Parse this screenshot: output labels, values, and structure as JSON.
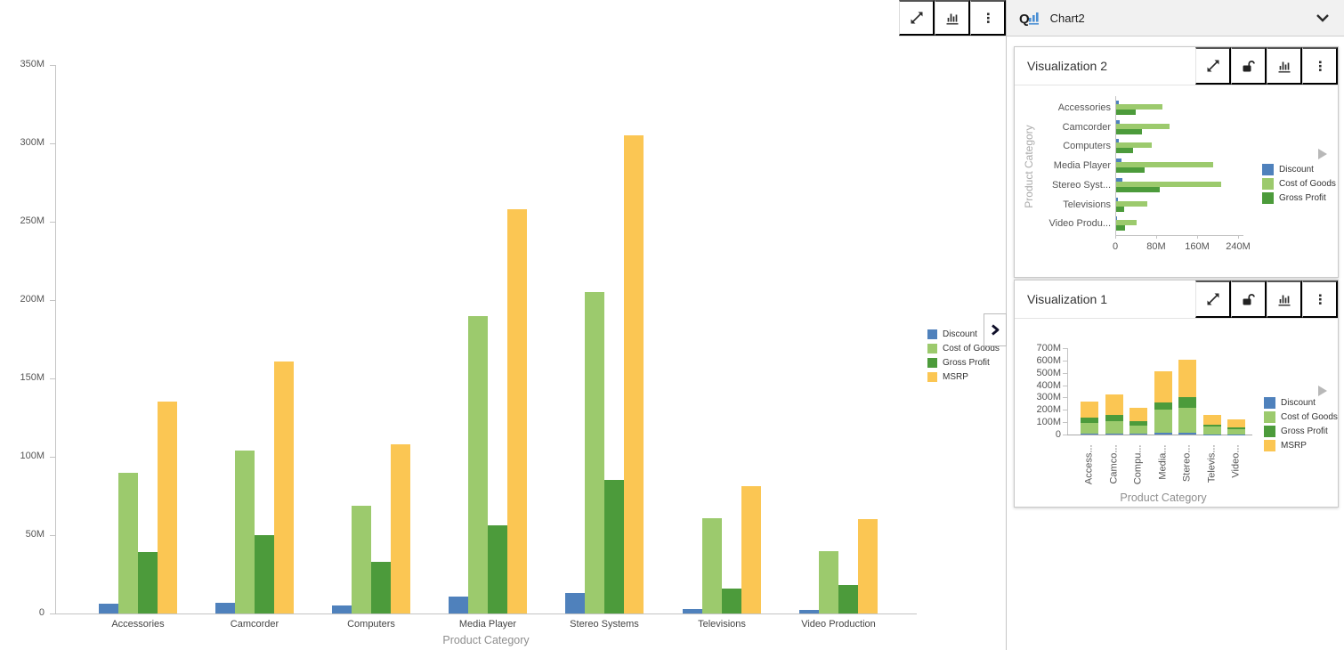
{
  "panel": {
    "title": "Chart2",
    "logo_text": "Q",
    "cards": [
      {
        "title": "Visualization 2"
      },
      {
        "title": "Visualization 1"
      }
    ]
  },
  "icons": {
    "main_toolbar": [
      "expand-icon",
      "bar-chart-icon",
      "ellipsis-icon"
    ],
    "card_toolbar": [
      "expand-icon",
      "unlock-icon",
      "bar-chart-icon",
      "ellipsis-icon"
    ],
    "panel_header": [
      "q-bars-logo-icon",
      "chevron-down-icon"
    ],
    "main_collapse": "chevron-right-icon",
    "card_overflow": "triangle-right-icon"
  },
  "colors": {
    "discount": "#4F81BC",
    "cost_of_goods": "#9CCA6D",
    "gross_profit": "#4C9B3B",
    "msrp": "#FBC653",
    "axis_line": "#c4c4c4",
    "tick_text": "#555555",
    "category_text": "#444444",
    "axis_title_text": "#8f8f8f",
    "rotated_axis_title_text": "#aaaaaa"
  },
  "chart_data": [
    {
      "id": "main",
      "type": "bar",
      "title": "",
      "xlabel": "Product Category",
      "ylabel": "",
      "unit": "M",
      "ylim": [
        0,
        350
      ],
      "grid": false,
      "legend_position": "right",
      "categories": [
        "Accessories",
        "Camcorder",
        "Computers",
        "Media Player",
        "Stereo Systems",
        "Televisions",
        "Video Production"
      ],
      "yticks": [
        {
          "v": 0,
          "label": "0"
        },
        {
          "v": 50,
          "label": "50M"
        },
        {
          "v": 100,
          "label": "100M"
        },
        {
          "v": 150,
          "label": "150M"
        },
        {
          "v": 200,
          "label": "200M"
        },
        {
          "v": 250,
          "label": "250M"
        },
        {
          "v": 300,
          "label": "300M"
        },
        {
          "v": 350,
          "label": "350M"
        }
      ],
      "series": [
        {
          "name": "Discount",
          "color_key": "discount",
          "values": [
            6,
            7,
            5,
            11,
            13,
            3,
            2
          ]
        },
        {
          "name": "Cost of Goods",
          "color_key": "cost_of_goods",
          "values": [
            90,
            104,
            69,
            190,
            205,
            61,
            40
          ]
        },
        {
          "name": "Gross Profit",
          "color_key": "gross_profit",
          "values": [
            39,
            50,
            33,
            56,
            85,
            16,
            18
          ]
        },
        {
          "name": "MSRP",
          "color_key": "msrp",
          "values": [
            135,
            161,
            108,
            258,
            305,
            81,
            60
          ]
        }
      ]
    },
    {
      "id": "viz2",
      "type": "bar-horizontal",
      "title": "Visualization 2",
      "xlabel": "",
      "ylabel": "Product Category",
      "unit": "M",
      "xlim": [
        0,
        240
      ],
      "grid": false,
      "legend_position": "right",
      "categories": [
        "Accessories",
        "Camcorder",
        "Computers",
        "Media Player",
        "Stereo Syst...",
        "Televisions",
        "Video Produ..."
      ],
      "xticks": [
        {
          "v": 0,
          "label": "0"
        },
        {
          "v": 80,
          "label": "80M"
        },
        {
          "v": 160,
          "label": "160M"
        },
        {
          "v": 240,
          "label": "240M"
        }
      ],
      "series": [
        {
          "name": "Discount",
          "color_key": "discount",
          "values": [
            6,
            7,
            5,
            11,
            13,
            3,
            2
          ]
        },
        {
          "name": "Cost of Goods",
          "color_key": "cost_of_goods",
          "values": [
            90,
            104,
            69,
            190,
            205,
            61,
            40
          ]
        },
        {
          "name": "Gross Profit",
          "color_key": "gross_profit",
          "values": [
            39,
            50,
            33,
            56,
            85,
            16,
            18
          ]
        }
      ]
    },
    {
      "id": "viz1",
      "type": "bar-stacked",
      "title": "Visualization 1",
      "xlabel": "Product Category",
      "ylabel": "",
      "unit": "M",
      "ylim": [
        0,
        700
      ],
      "grid": false,
      "legend_position": "right",
      "categories": [
        "Access...",
        "Camco...",
        "Compu...",
        "Media...",
        "Stereo...",
        "Televis...",
        "Video..."
      ],
      "yticks": [
        {
          "v": 0,
          "label": "0"
        },
        {
          "v": 100,
          "label": "100M"
        },
        {
          "v": 200,
          "label": "200M"
        },
        {
          "v": 300,
          "label": "300M"
        },
        {
          "v": 400,
          "label": "400M"
        },
        {
          "v": 500,
          "label": "500M"
        },
        {
          "v": 600,
          "label": "600M"
        },
        {
          "v": 700,
          "label": "700M"
        }
      ],
      "series": [
        {
          "name": "Discount",
          "color_key": "discount",
          "values": [
            6,
            7,
            5,
            11,
            13,
            3,
            2
          ]
        },
        {
          "name": "Cost of Goods",
          "color_key": "cost_of_goods",
          "values": [
            90,
            104,
            69,
            190,
            205,
            61,
            40
          ]
        },
        {
          "name": "Gross Profit",
          "color_key": "gross_profit",
          "values": [
            39,
            50,
            33,
            56,
            85,
            16,
            18
          ]
        },
        {
          "name": "MSRP",
          "color_key": "msrp",
          "values": [
            135,
            161,
            108,
            258,
            305,
            81,
            60
          ]
        }
      ]
    }
  ]
}
